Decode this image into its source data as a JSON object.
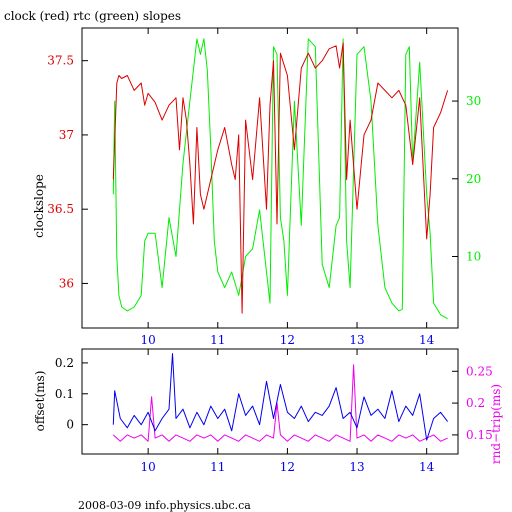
{
  "colors": {
    "red": "#dd0000",
    "green": "#00ee00",
    "blue": "#0000ee",
    "magenta": "#ee00ee",
    "black": "#000000"
  },
  "chart_data": [
    {
      "type": "line",
      "title": "clock (red) rtc (green) slopes",
      "ylabel": "clockslope",
      "x_ticks": [
        10,
        11,
        12,
        13,
        14
      ],
      "xlim": [
        9.05,
        14.45
      ],
      "y_left": {
        "ticks": [
          36,
          36.5,
          37,
          37.5
        ],
        "tick_labels": [
          "36",
          "36.5",
          "37",
          "37.5"
        ],
        "lim": [
          35.7,
          37.72
        ]
      },
      "y_right": {
        "ticks": [
          10,
          20,
          30
        ],
        "tick_labels": [
          "10",
          "20",
          "30"
        ],
        "lim": [
          0.8,
          39.4
        ]
      },
      "series": [
        {
          "name": "clock",
          "color": "#dd0000",
          "axis": "left",
          "x": [
            9.5,
            9.55,
            9.58,
            9.62,
            9.7,
            9.8,
            9.9,
            9.95,
            10.0,
            10.1,
            10.2,
            10.3,
            10.4,
            10.45,
            10.5,
            10.55,
            10.6,
            10.65,
            10.7,
            10.75,
            10.8,
            10.9,
            11.0,
            11.1,
            11.2,
            11.25,
            11.3,
            11.35,
            11.4,
            11.5,
            11.6,
            11.7,
            11.75,
            11.8,
            11.85,
            11.9,
            12.0,
            12.1,
            12.2,
            12.3,
            12.4,
            12.5,
            12.6,
            12.7,
            12.75,
            12.8,
            12.85,
            12.9,
            13.0,
            13.1,
            13.2,
            13.3,
            13.4,
            13.5,
            13.6,
            13.7,
            13.8,
            13.9,
            14.0,
            14.05,
            14.1,
            14.2,
            14.3
          ],
          "y": [
            36.7,
            37.35,
            37.4,
            37.38,
            37.4,
            37.3,
            37.35,
            37.2,
            37.28,
            37.22,
            37.1,
            37.2,
            37.25,
            36.9,
            37.25,
            37.1,
            36.8,
            36.4,
            37.05,
            36.6,
            36.5,
            36.7,
            36.9,
            37.05,
            36.8,
            36.7,
            37.0,
            35.8,
            37.1,
            36.7,
            37.25,
            36.5,
            37.2,
            37.5,
            36.4,
            37.55,
            37.4,
            36.9,
            37.45,
            37.55,
            37.45,
            37.5,
            37.58,
            37.6,
            37.45,
            37.62,
            36.7,
            37.1,
            36.5,
            37.0,
            37.1,
            37.35,
            37.3,
            37.25,
            37.3,
            37.2,
            36.8,
            37.25,
            36.3,
            36.6,
            37.05,
            37.15,
            37.3
          ]
        },
        {
          "name": "rtc",
          "color": "#00ee00",
          "axis": "right",
          "x": [
            9.5,
            9.52,
            9.55,
            9.58,
            9.62,
            9.7,
            9.8,
            9.9,
            9.95,
            10.0,
            10.1,
            10.2,
            10.3,
            10.4,
            10.5,
            10.6,
            10.65,
            10.7,
            10.75,
            10.8,
            10.85,
            10.9,
            10.95,
            11.0,
            11.1,
            11.2,
            11.3,
            11.4,
            11.5,
            11.6,
            11.7,
            11.75,
            11.8,
            11.85,
            11.9,
            11.95,
            12.0,
            12.1,
            12.2,
            12.3,
            12.4,
            12.5,
            12.6,
            12.7,
            12.75,
            12.8,
            12.85,
            12.9,
            13.0,
            13.1,
            13.2,
            13.3,
            13.4,
            13.5,
            13.6,
            13.65,
            13.7,
            13.75,
            13.8,
            13.9,
            14.0,
            14.05,
            14.1,
            14.2,
            14.3
          ],
          "y": [
            18,
            30,
            10,
            5,
            3.5,
            3,
            3.5,
            5,
            12,
            13,
            13,
            6,
            15,
            10,
            22,
            30,
            34,
            38,
            36,
            38,
            34,
            24,
            12,
            8,
            6,
            8,
            5,
            10,
            11,
            16,
            8,
            4,
            37,
            36,
            15,
            12,
            5,
            30,
            14,
            38,
            37,
            9,
            6,
            14,
            15,
            38,
            12,
            6,
            36,
            37,
            30,
            14,
            6,
            4,
            3,
            3.2,
            36,
            37,
            22,
            35,
            18,
            13,
            4,
            2.5,
            2
          ]
        }
      ]
    },
    {
      "type": "line",
      "ylabel_left": "offset(ms)",
      "ylabel_right": "rnd−trip(ms)",
      "footer": "2008-03-09 info.physics.ubc.ca",
      "x_ticks": [
        10,
        11,
        12,
        13,
        14
      ],
      "xlim": [
        9.05,
        14.45
      ],
      "y_left": {
        "ticks": [
          0,
          0.1,
          0.2
        ],
        "tick_labels": [
          "0",
          "0.1",
          "0.2"
        ],
        "lim": [
          -0.095,
          0.245
        ]
      },
      "y_right": {
        "ticks": [
          0.15,
          0.2,
          0.25
        ],
        "tick_labels": [
          "0.15",
          "0.2",
          "0.25"
        ],
        "lim": [
          0.12,
          0.285
        ]
      },
      "series": [
        {
          "name": "offset",
          "color": "#0000ee",
          "axis": "left",
          "x": [
            9.5,
            9.52,
            9.6,
            9.7,
            9.8,
            9.9,
            10.0,
            10.1,
            10.2,
            10.3,
            10.35,
            10.4,
            10.5,
            10.6,
            10.7,
            10.8,
            10.9,
            11.0,
            11.1,
            11.2,
            11.3,
            11.4,
            11.5,
            11.6,
            11.7,
            11.8,
            11.9,
            12.0,
            12.1,
            12.2,
            12.3,
            12.4,
            12.5,
            12.6,
            12.7,
            12.8,
            12.9,
            13.0,
            13.1,
            13.2,
            13.3,
            13.4,
            13.5,
            13.6,
            13.7,
            13.8,
            13.9,
            14.0,
            14.1,
            14.2,
            14.3
          ],
          "y": [
            0.0,
            0.11,
            0.02,
            -0.01,
            0.03,
            0.0,
            0.04,
            -0.02,
            0.02,
            0.05,
            0.23,
            0.02,
            0.05,
            -0.01,
            0.04,
            0.0,
            0.06,
            0.02,
            0.05,
            -0.02,
            0.1,
            0.03,
            0.06,
            0.0,
            0.14,
            0.02,
            0.13,
            0.04,
            0.02,
            0.06,
            0.01,
            0.04,
            0.03,
            0.06,
            0.12,
            0.02,
            0.04,
            -0.01,
            0.09,
            0.03,
            0.05,
            0.02,
            0.11,
            0.01,
            0.06,
            0.03,
            0.1,
            -0.05,
            0.02,
            0.04,
            0.01
          ]
        },
        {
          "name": "rnd-trip",
          "color": "#ee00ee",
          "axis": "right",
          "x": [
            9.5,
            9.6,
            9.7,
            9.8,
            9.9,
            10.0,
            10.05,
            10.1,
            10.2,
            10.3,
            10.4,
            10.5,
            10.6,
            10.7,
            10.8,
            10.9,
            11.0,
            11.1,
            11.2,
            11.3,
            11.4,
            11.5,
            11.6,
            11.7,
            11.8,
            11.85,
            11.9,
            12.0,
            12.1,
            12.2,
            12.3,
            12.4,
            12.5,
            12.6,
            12.7,
            12.8,
            12.9,
            12.95,
            13.0,
            13.1,
            13.2,
            13.3,
            13.4,
            13.5,
            13.6,
            13.7,
            13.8,
            13.9,
            14.0,
            14.1,
            14.2,
            14.3
          ],
          "y": [
            0.15,
            0.14,
            0.15,
            0.145,
            0.15,
            0.14,
            0.21,
            0.145,
            0.15,
            0.14,
            0.15,
            0.145,
            0.14,
            0.15,
            0.145,
            0.15,
            0.14,
            0.15,
            0.145,
            0.14,
            0.15,
            0.145,
            0.14,
            0.15,
            0.145,
            0.2,
            0.15,
            0.14,
            0.15,
            0.145,
            0.14,
            0.15,
            0.145,
            0.14,
            0.15,
            0.145,
            0.14,
            0.26,
            0.145,
            0.15,
            0.14,
            0.15,
            0.145,
            0.14,
            0.15,
            0.145,
            0.15,
            0.14,
            0.145,
            0.15,
            0.14,
            0.145
          ]
        }
      ]
    }
  ]
}
